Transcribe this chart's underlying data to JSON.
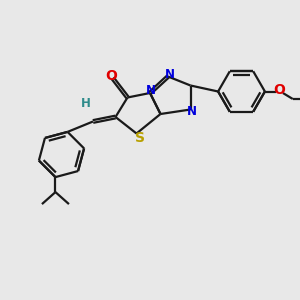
{
  "bg_color": "#e8e8e8",
  "bond_color": "#1a1a1a",
  "atom_colors": {
    "O": "#e00000",
    "N": "#0000dd",
    "S": "#b8a000",
    "H_vinyl": "#2e8b8b"
  },
  "line_width": 1.6,
  "font_size": 8.5
}
